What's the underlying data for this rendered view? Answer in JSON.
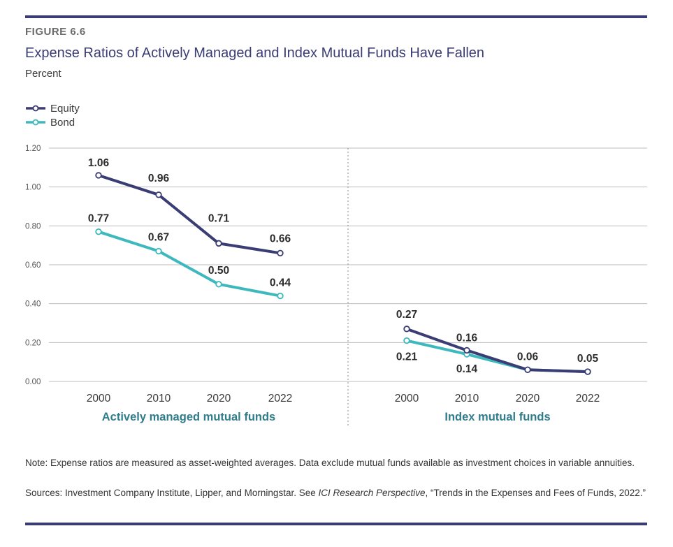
{
  "figure_label": "FIGURE 6.6",
  "title": "Expense Ratios of Actively Managed and Index Mutual Funds Have Fallen",
  "subtitle": "Percent",
  "legend": {
    "equity": "Equity",
    "bond": "Bond"
  },
  "colors": {
    "equity": "#3a3d74",
    "bond": "#3db9bd",
    "accent": "#3a3d74",
    "panel_label": "#2f7d8c",
    "grid": "#bdbdbd"
  },
  "chart_data": {
    "type": "line",
    "ylim": [
      0,
      1.2
    ],
    "yticks": [
      "0.00",
      "0.20",
      "0.40",
      "0.60",
      "0.80",
      "1.00",
      "1.20"
    ],
    "grid": true,
    "legend_position": "top-left",
    "panels": [
      {
        "label": "Actively managed mutual funds",
        "categories": [
          "2000",
          "2010",
          "2020",
          "2022"
        ],
        "series": [
          {
            "name": "Equity",
            "values": [
              1.06,
              0.96,
              0.71,
              0.66
            ],
            "labels": [
              "1.06",
              "0.96",
              "0.71",
              "0.66"
            ]
          },
          {
            "name": "Bond",
            "values": [
              0.77,
              0.67,
              0.5,
              0.44
            ],
            "labels": [
              "0.77",
              "0.67",
              "0.50",
              "0.44"
            ]
          }
        ]
      },
      {
        "label": "Index mutual funds",
        "categories": [
          "2000",
          "2010",
          "2020",
          "2022"
        ],
        "series": [
          {
            "name": "Equity",
            "values": [
              0.27,
              0.16,
              0.06,
              0.05
            ],
            "labels": [
              "0.27",
              "0.16",
              "0.06",
              "0.05"
            ]
          },
          {
            "name": "Bond",
            "values": [
              0.21,
              0.14,
              0.06,
              0.05
            ],
            "labels": [
              "0.21",
              "0.14",
              "",
              ""
            ]
          }
        ]
      }
    ]
  },
  "note": "Note: Expense ratios are measured as asset-weighted averages. Data exclude mutual funds available as investment choices in variable annuities.",
  "sources": {
    "prefix": "Sources: Investment Company Institute, Lipper, and Morningstar. See ",
    "publication": "ICI Research Perspective",
    "suffix": ", “Trends in the Expenses and Fees of Funds, 2022.”"
  }
}
